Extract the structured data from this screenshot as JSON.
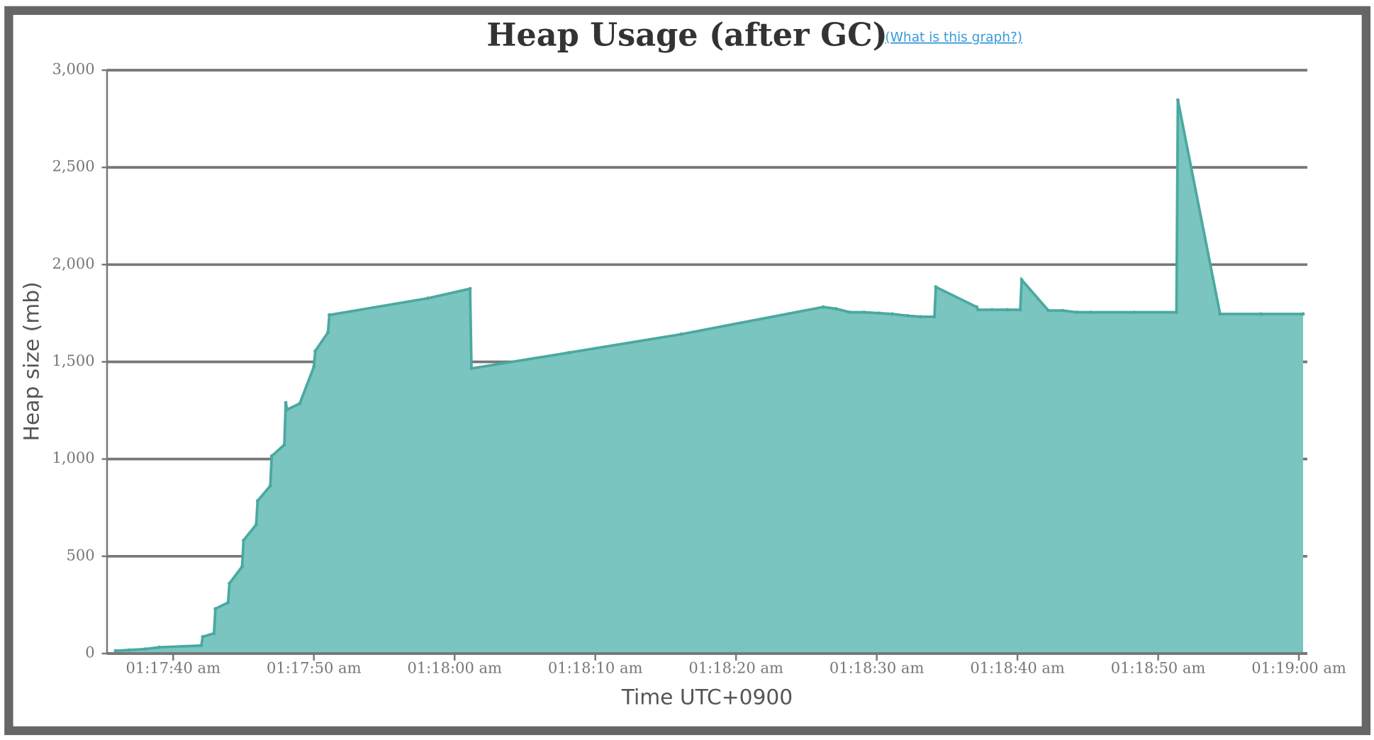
{
  "chart_data": {
    "type": "area",
    "title": "Heap Usage (after GC)",
    "link_text": "(What is this graph?)",
    "x_label": "Time UTC+0900",
    "y_label": "Heap size (mb)",
    "color": "#7ac5c0",
    "line_color": "#4aa9a0",
    "grid": true,
    "xlim": [
      "01:17:35.3",
      "01:19:00.6"
    ],
    "xticks": [
      "01:17:40 am",
      "01:17:50 am",
      "01:18:00 am",
      "01:18:10 am",
      "01:18:20 am",
      "01:18:30 am",
      "01:18:40 am",
      "01:18:50 am",
      "01:19:00 am"
    ],
    "ylim": [
      0,
      3000
    ],
    "yticks": [
      0,
      500,
      {
        "value": 1000,
        "label": "1,000"
      },
      {
        "value": 1500,
        "label": "1,500"
      },
      {
        "value": 2000,
        "label": "2,000"
      },
      {
        "value": 2500,
        "label": "2,500"
      },
      {
        "value": 3000,
        "label": "3,000"
      }
    ],
    "x": [
      "01:17:35.9",
      "01:17:36.9",
      "01:17:38.0",
      "01:17:39.0",
      "01:17:42.0",
      "01:17:42.1",
      "01:17:42.9",
      "01:17:43.0",
      "01:17:43.9",
      "01:17:44.0",
      "01:17:44.9",
      "01:17:45.0",
      "01:17:45.9",
      "01:17:46.0",
      "01:17:46.9",
      "01:17:47.0",
      "01:17:47.9",
      "01:17:48.0",
      "01:17:48.1",
      "01:17:49.0",
      "01:17:50.0",
      "01:17:50.1",
      "01:17:51.0",
      "01:17:51.1",
      "01:17:58.1",
      "01:18:01.1",
      "01:18:01.2",
      "01:18:08.1",
      "01:18:16.1",
      "01:18:26.2",
      "01:18:27.1",
      "01:18:28.1",
      "01:18:29.1",
      "01:18:30.2",
      "01:18:31.1",
      "01:18:32.2",
      "01:18:33.1",
      "01:18:34.1",
      "01:18:34.2",
      "01:18:37.1",
      "01:18:37.2",
      "01:18:38.2",
      "01:18:39.3",
      "01:18:40.2",
      "01:18:40.3",
      "01:18:42.2",
      "01:18:43.2",
      "01:18:44.2",
      "01:18:45.2",
      "01:18:48.3",
      "01:18:51.3",
      "01:18:51.4",
      "01:18:54.4",
      "01:18:57.3",
      "01:19:00.3"
    ],
    "values": [
      14,
      18,
      23,
      32,
      41,
      86,
      104,
      230,
      262,
      361,
      447,
      582,
      663,
      785,
      862,
      1015,
      1074,
      1290,
      1254,
      1286,
      1475,
      1556,
      1651,
      1741,
      1827,
      1876,
      1466,
      1547,
      1642,
      1782,
      1773,
      1755,
      1755,
      1750,
      1746,
      1737,
      1732,
      1732,
      1885,
      1782,
      1768,
      1768,
      1768,
      1768,
      1922,
      1764,
      1764,
      1755,
      1755,
      1755,
      1755,
      2846,
      1746,
      1746,
      1746
    ]
  }
}
